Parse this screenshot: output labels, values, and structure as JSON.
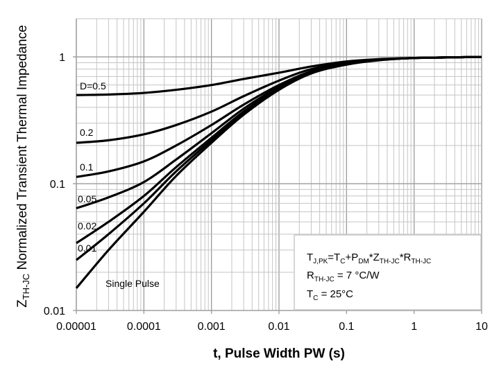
{
  "chart_data": {
    "type": "line",
    "title": "",
    "xlabel": "t, Pulse Width PW (s)",
    "ylabel": "Z_TH-JC Normalized Transient Thermal Impedance",
    "ylabel_main": "Z",
    "ylabel_sub": "TH-JC",
    "ylabel_rest": " Normalized Transient Thermal Impedance",
    "xscale": "log",
    "yscale": "log",
    "xlim": [
      1e-05,
      10
    ],
    "ylim": [
      0.01,
      2
    ],
    "grid": true,
    "xticks": [
      {
        "v": 1e-05,
        "label": "0.00001"
      },
      {
        "v": 0.0001,
        "label": "0.0001"
      },
      {
        "v": 0.001,
        "label": "0.001"
      },
      {
        "v": 0.01,
        "label": "0.01"
      },
      {
        "v": 0.1,
        "label": "0.1"
      },
      {
        "v": 1,
        "label": "1"
      },
      {
        "v": 10,
        "label": "10"
      }
    ],
    "yticks": [
      {
        "v": 0.01,
        "label": "0.01"
      },
      {
        "v": 0.1,
        "label": "0.1"
      },
      {
        "v": 1,
        "label": "1"
      }
    ],
    "x": [
      1e-05,
      3e-05,
      0.0001,
      0.0003,
      0.001,
      0.003,
      0.01,
      0.03,
      0.1,
      0.3,
      1,
      3,
      10
    ],
    "series": [
      {
        "name": "D=0.5",
        "label": "D=0.5",
        "values": [
          0.5,
          0.505,
          0.52,
          0.55,
          0.6,
          0.67,
          0.75,
          0.84,
          0.92,
          0.96,
          0.98,
          0.99,
          1.0
        ]
      },
      {
        "name": "0.2",
        "label": "0.2",
        "values": [
          0.21,
          0.22,
          0.245,
          0.29,
          0.37,
          0.49,
          0.65,
          0.8,
          0.9,
          0.95,
          0.98,
          0.99,
          1.0
        ]
      },
      {
        "name": "0.1",
        "label": "0.1",
        "values": [
          0.113,
          0.125,
          0.15,
          0.2,
          0.29,
          0.42,
          0.6,
          0.77,
          0.89,
          0.95,
          0.98,
          0.99,
          1.0
        ]
      },
      {
        "name": "0.05",
        "label": "0.05",
        "values": [
          0.064,
          0.078,
          0.103,
          0.155,
          0.25,
          0.39,
          0.58,
          0.76,
          0.88,
          0.95,
          0.98,
          0.99,
          1.0
        ]
      },
      {
        "name": "0.02",
        "label": "0.02",
        "values": [
          0.034,
          0.05,
          0.08,
          0.135,
          0.23,
          0.37,
          0.56,
          0.75,
          0.875,
          0.945,
          0.98,
          0.99,
          1.0
        ]
      },
      {
        "name": "0.01",
        "label": "0.01",
        "values": [
          0.025,
          0.04,
          0.07,
          0.125,
          0.22,
          0.36,
          0.555,
          0.745,
          0.87,
          0.945,
          0.98,
          0.99,
          1.0
        ]
      },
      {
        "name": "Single Pulse",
        "label": "Single Pulse",
        "values": [
          0.015,
          0.03,
          0.06,
          0.115,
          0.21,
          0.35,
          0.55,
          0.74,
          0.87,
          0.94,
          0.98,
          0.99,
          1.0
        ]
      }
    ],
    "annotation": {
      "line1": {
        "a": "T",
        "a_sub": "J,PK",
        "b": "=T",
        "b_sub": "C",
        "c": "+P",
        "c_sub": "DM",
        "d": "*Z",
        "d_sub": "TH-JC",
        "e": "*R",
        "e_sub": "TH-JC"
      },
      "line2": {
        "a": "R",
        "a_sub": "TH-JC",
        "b": " = 7 °C/W"
      },
      "line3": {
        "a": "T",
        "a_sub": "C",
        "b": " = 25°C"
      }
    }
  }
}
